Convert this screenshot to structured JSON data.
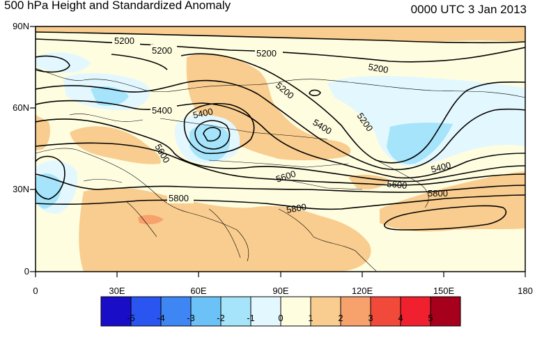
{
  "title": "500 hPa Height and Standardized Anomaly",
  "timestamp": "0000 UTC 3 Jan 2013",
  "y_ticks": [
    "90N",
    "60N",
    "30N",
    "0"
  ],
  "x_ticks": [
    "0",
    "30E",
    "60E",
    "90E",
    "120E",
    "150E",
    "180"
  ],
  "contour_labels": [
    "5200",
    "5200",
    "5200",
    "5200",
    "5200",
    "5200",
    "5400",
    "5400",
    "5400",
    "5400",
    "5600",
    "5600",
    "5600",
    "5800",
    "5800",
    "5800"
  ],
  "colorbar": {
    "labels": [
      "-5",
      "-4",
      "-3",
      "-2",
      "-1",
      "0",
      "1",
      "2",
      "3",
      "4",
      "5"
    ],
    "colors": [
      "#1a0dc7",
      "#2a55f0",
      "#3f86f5",
      "#6cc2f7",
      "#a5e4fb",
      "#e3f8fe",
      "#fefde0",
      "#f9cd8f",
      "#f7a16c",
      "#f24a3a",
      "#f0202e",
      "#a6001c"
    ]
  }
}
